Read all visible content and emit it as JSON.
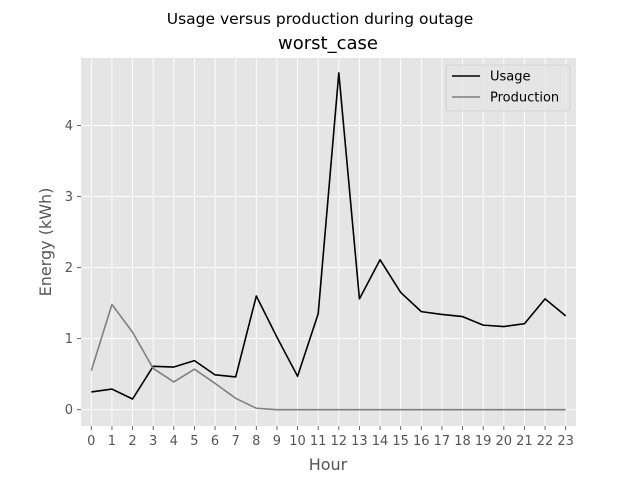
{
  "chart_data": {
    "type": "line",
    "suptitle": "Usage versus production during outage",
    "title": "worst_case",
    "xlabel": "Hour",
    "ylabel": "Energy (kWh)",
    "x": [
      0,
      1,
      2,
      3,
      4,
      5,
      6,
      7,
      8,
      9,
      10,
      11,
      12,
      13,
      14,
      15,
      16,
      17,
      18,
      19,
      20,
      21,
      22,
      23
    ],
    "xlim": [
      -0.5,
      23.5
    ],
    "ylim": [
      -0.23,
      4.95
    ],
    "yticks": [
      0,
      1,
      2,
      3,
      4
    ],
    "grid": true,
    "legend_position": "top-right",
    "series": [
      {
        "name": "Usage",
        "color": "#000000",
        "values": [
          0.25,
          0.29,
          0.15,
          0.61,
          0.6,
          0.69,
          0.49,
          0.46,
          1.6,
          1.02,
          0.47,
          1.35,
          4.74,
          1.56,
          2.11,
          1.65,
          1.38,
          1.34,
          1.31,
          1.19,
          1.17,
          1.21,
          1.56,
          1.32
        ]
      },
      {
        "name": "Production",
        "color": "#808080",
        "values": [
          0.55,
          1.48,
          1.09,
          0.58,
          0.39,
          0.57,
          0.37,
          0.16,
          0.02,
          0.0,
          0.0,
          0.0,
          0.0,
          0.0,
          0.0,
          0.0,
          0.0,
          0.0,
          0.0,
          0.0,
          0.0,
          0.0,
          0.0,
          0.0
        ]
      }
    ]
  }
}
